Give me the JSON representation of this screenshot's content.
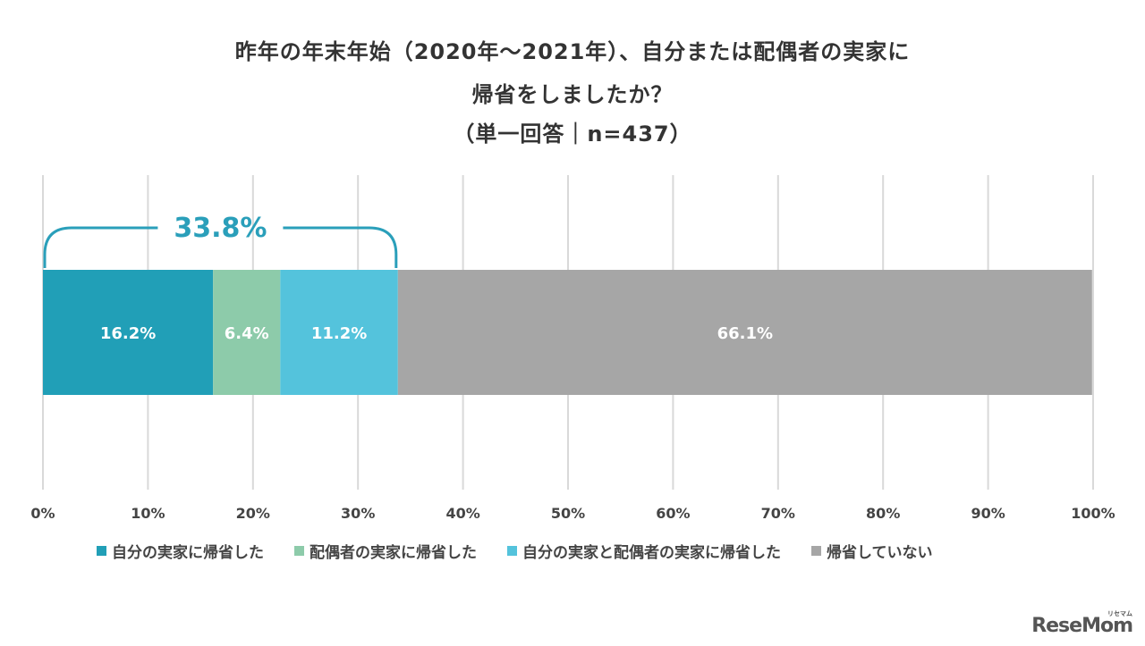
{
  "title_lines": [
    "昨年の年末年始（2020年〜2021年）、自分または配偶者の実家に",
    "帰省をしましたか？",
    "（単一回答｜n=437）"
  ],
  "chart_data": {
    "type": "bar",
    "orientation": "horizontal",
    "stacked": true,
    "xlim": [
      0,
      100
    ],
    "x_ticks": [
      "0%",
      "10%",
      "20%",
      "30%",
      "40%",
      "50%",
      "60%",
      "70%",
      "80%",
      "90%",
      "100%"
    ],
    "grid": true,
    "legend_position": "bottom",
    "series": [
      {
        "name": "自分の実家に帰省した",
        "value": 16.2,
        "label": "16.2%",
        "color": "#219fb7"
      },
      {
        "name": "配偶者の実家に帰省した",
        "value": 6.4,
        "label": "6.4%",
        "color": "#8dcbaa"
      },
      {
        "name": "自分の実家と配偶者の実家に帰省した",
        "value": 11.2,
        "label": "11.2%",
        "color": "#54c3dc"
      },
      {
        "name": "帰省していない",
        "value": 66.1,
        "label": "66.1%",
        "color": "#a6a6a6"
      }
    ],
    "annotation": {
      "label": "33.8%",
      "from": 0,
      "to": 33.8,
      "color": "#2a9fba"
    }
  },
  "watermark": {
    "text": "ReseMom",
    "sub": "リセマム"
  }
}
